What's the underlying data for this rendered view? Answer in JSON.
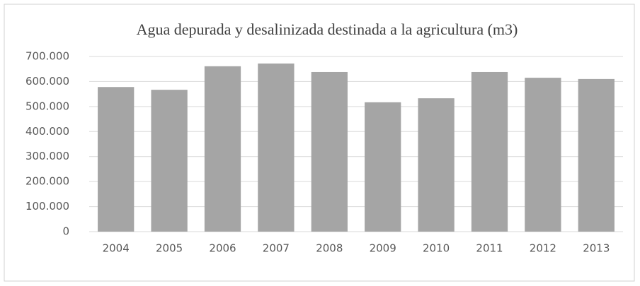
{
  "chart_data": {
    "type": "bar",
    "title": "Agua depurada y desalinizada destinada a la agricultura (m3)",
    "categories": [
      "2004",
      "2005",
      "2006",
      "2007",
      "2008",
      "2009",
      "2010",
      "2011",
      "2012",
      "2013"
    ],
    "values": [
      578000,
      567000,
      661000,
      672000,
      638000,
      517000,
      533000,
      638000,
      615000,
      610000
    ],
    "color": "#a5a5a5",
    "ylim": [
      0,
      700000
    ],
    "yticks": [
      0,
      {
        "value": 100000,
        "label": "100.000"
      },
      {
        "value": 200000,
        "label": "200.000"
      },
      {
        "value": 300000,
        "label": "300.000"
      },
      {
        "value": 400000,
        "label": "400.000"
      },
      {
        "value": 500000,
        "label": "500.000"
      },
      {
        "value": 600000,
        "label": "600.000"
      },
      {
        "value": 700000,
        "label": "700.000"
      }
    ],
    "grid": true
  }
}
